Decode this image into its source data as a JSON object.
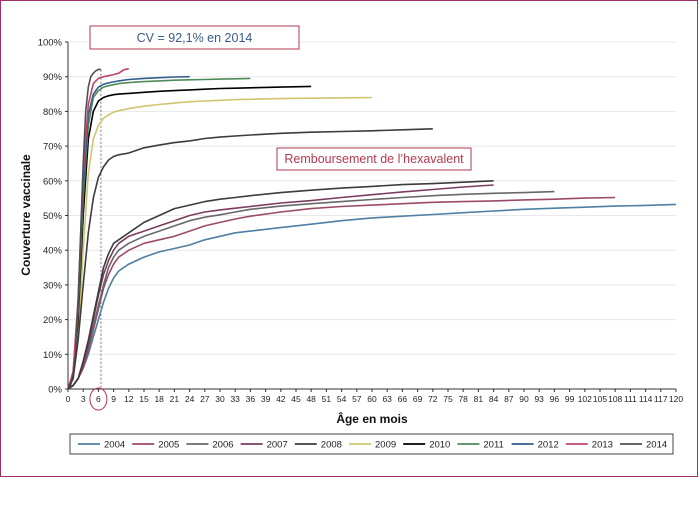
{
  "chart_data": {
    "type": "line",
    "ylabel": "Couverture vaccinale",
    "xlabel": "Âge en mois",
    "xlim": [
      0,
      120
    ],
    "ylim": [
      0,
      100
    ],
    "x_ticks": [
      0,
      3,
      6,
      9,
      12,
      15,
      18,
      21,
      24,
      27,
      30,
      33,
      36,
      39,
      42,
      45,
      48,
      51,
      54,
      57,
      60,
      63,
      66,
      69,
      72,
      75,
      78,
      81,
      84,
      87,
      90,
      93,
      96,
      99,
      102,
      105,
      108,
      111,
      114,
      117,
      120
    ],
    "y_ticks": [
      "0%",
      "10%",
      "20%",
      "30%",
      "40%",
      "50%",
      "60%",
      "70%",
      "80%",
      "90%",
      "100%"
    ],
    "y_tick_values": [
      0,
      10,
      20,
      30,
      40,
      50,
      60,
      70,
      80,
      90,
      100
    ],
    "highlighted_tick": "6",
    "reference_x": 6.5,
    "annotations": [
      {
        "text": "CV = 92,1% en 2014",
        "color": "#3a5a8a"
      },
      {
        "text": "Remboursement de l’hexavalent",
        "color": "#b03a50"
      }
    ],
    "legend_position": "bottom",
    "series": [
      {
        "name": "2004",
        "color": "#4f7fa3",
        "x": [
          0,
          1,
          2,
          3,
          4,
          5,
          6,
          7,
          8,
          9,
          10,
          12,
          15,
          18,
          21,
          24,
          27,
          30,
          33,
          36,
          42,
          48,
          54,
          60,
          66,
          72,
          78,
          84,
          90,
          96,
          102,
          108,
          114,
          120
        ],
        "y": [
          0,
          1,
          3,
          6,
          10,
          15,
          20,
          25,
          29,
          32,
          34,
          36,
          38,
          39.5,
          40.5,
          41.5,
          43,
          44,
          45,
          45.5,
          46.5,
          47.5,
          48.5,
          49.3,
          49.8,
          50.3,
          50.8,
          51.3,
          51.8,
          52.1,
          52.4,
          52.7,
          52.9,
          53.2
        ]
      },
      {
        "name": "2005",
        "color": "#9b4a6e",
        "x": [
          0,
          1,
          2,
          3,
          4,
          5,
          6,
          7,
          8,
          9,
          10,
          12,
          15,
          18,
          21,
          24,
          27,
          30,
          33,
          36,
          42,
          48,
          54,
          60,
          66,
          72,
          78,
          84,
          90,
          96,
          102,
          108
        ],
        "y": [
          0,
          1,
          3,
          6,
          11,
          17,
          23,
          29,
          33,
          36,
          38,
          40,
          42,
          43,
          44,
          45.5,
          47,
          48,
          49,
          49.8,
          51,
          52,
          52.6,
          53,
          53.4,
          53.8,
          54,
          54.2,
          54.5,
          54.7,
          55,
          55.2
        ]
      },
      {
        "name": "2006",
        "color": "#686868",
        "x": [
          0,
          1,
          2,
          3,
          4,
          5,
          6,
          7,
          8,
          9,
          10,
          12,
          15,
          18,
          21,
          24,
          27,
          30,
          33,
          36,
          42,
          48,
          54,
          60,
          66,
          72,
          78,
          84,
          90,
          96
        ],
        "y": [
          0,
          1,
          3,
          7,
          12,
          18,
          24,
          30,
          35,
          38,
          40,
          42,
          44,
          45.5,
          47,
          48.5,
          49.5,
          50.2,
          51,
          51.8,
          52.7,
          53.4,
          54,
          54.6,
          55.2,
          55.7,
          56.1,
          56.4,
          56.6,
          56.9
        ]
      },
      {
        "name": "2007",
        "color": "#7b3c5e",
        "x": [
          0,
          1,
          2,
          3,
          4,
          5,
          6,
          7,
          8,
          9,
          10,
          12,
          15,
          18,
          21,
          24,
          27,
          30,
          33,
          36,
          42,
          48,
          54,
          60,
          66,
          72,
          78,
          84
        ],
        "y": [
          0,
          1,
          3,
          7,
          13,
          20,
          27,
          33,
          37,
          40,
          42,
          44,
          45.5,
          47,
          48.5,
          50,
          51,
          51.6,
          52.1,
          52.6,
          53.6,
          54.3,
          55.2,
          56,
          56.8,
          57.5,
          58.2,
          58.8
        ]
      },
      {
        "name": "2008",
        "color": "#3c3c3c",
        "x": [
          0,
          1,
          2,
          3,
          4,
          5,
          6,
          7,
          8,
          9,
          10,
          12,
          15,
          18,
          21,
          24,
          27,
          30,
          33,
          36,
          42,
          48,
          54,
          60,
          66,
          72,
          78,
          84
        ],
        "y": [
          0,
          1,
          3,
          8,
          14,
          21,
          28,
          35,
          39,
          42,
          43,
          45,
          48,
          50,
          52,
          53,
          54,
          54.7,
          55.2,
          55.7,
          56.6,
          57.3,
          57.9,
          58.4,
          58.9,
          59.2,
          59.6,
          60
        ]
      },
      {
        "name": "2009",
        "color": "#d2c46e",
        "x": [
          0,
          1,
          2,
          3,
          4,
          5,
          6,
          7,
          8,
          9,
          10,
          12,
          15,
          18,
          21,
          24,
          27,
          30,
          33,
          36,
          42,
          48,
          54,
          60
        ],
        "y": [
          0,
          3,
          15,
          40,
          62,
          72,
          76,
          78,
          79,
          79.8,
          80.2,
          80.8,
          81.5,
          82,
          82.4,
          82.8,
          83,
          83.2,
          83.4,
          83.5,
          83.7,
          83.8,
          83.9,
          84
        ]
      },
      {
        "name": "2010",
        "color": "#000000",
        "x": [
          0,
          1,
          2,
          3,
          4,
          5,
          6,
          7,
          8,
          9,
          10,
          12,
          15,
          18,
          21,
          24,
          27,
          30,
          33,
          36,
          42,
          48
        ],
        "y": [
          0,
          4,
          20,
          50,
          72,
          80,
          83,
          84,
          84.5,
          84.8,
          85,
          85.2,
          85.5,
          85.8,
          86,
          86.2,
          86.4,
          86.6,
          86.7,
          86.8,
          87,
          87.2
        ]
      },
      {
        "name": "2011",
        "color": "#4e8a5a",
        "x": [
          0,
          1,
          2,
          3,
          4,
          5,
          6,
          7,
          8,
          9,
          10,
          12,
          15,
          18,
          21,
          24,
          27,
          30,
          33,
          36
        ],
        "y": [
          0,
          4,
          22,
          55,
          76,
          84,
          86,
          87,
          87.4,
          87.7,
          88,
          88.3,
          88.6,
          88.8,
          89,
          89.1,
          89.2,
          89.3,
          89.4,
          89.5
        ]
      },
      {
        "name": "2012",
        "color": "#2f5f8f",
        "x": [
          0,
          1,
          2,
          3,
          4,
          5,
          6,
          7,
          8,
          9,
          10,
          12,
          15,
          18,
          21,
          24
        ],
        "y": [
          0,
          4,
          24,
          58,
          79,
          85,
          87,
          87.8,
          88.2,
          88.5,
          88.8,
          89.2,
          89.5,
          89.7,
          89.9,
          90
        ]
      },
      {
        "name": "2013",
        "color": "#c0446a",
        "x": [
          0,
          1,
          2,
          3,
          4,
          5,
          6,
          7,
          8,
          9,
          10,
          11,
          12
        ],
        "y": [
          0,
          5,
          26,
          62,
          82,
          88,
          89.5,
          90,
          90.3,
          90.6,
          91,
          92,
          92.3
        ]
      },
      {
        "name": "2014",
        "color": "#505050",
        "x": [
          0,
          0.5,
          1,
          1.5,
          2,
          2.5,
          3,
          3.5,
          4,
          4.5,
          5,
          5.5,
          6,
          6.5
        ],
        "y": [
          0,
          1,
          4,
          10,
          25,
          45,
          65,
          80,
          87,
          90,
          91,
          91.7,
          92.1,
          92.1
        ]
      },
      {
        "name": "",
        "color": "#3c3c3c",
        "x": [
          0,
          1,
          2,
          3,
          4,
          5,
          6,
          7,
          8,
          9,
          10,
          12,
          15,
          18,
          21,
          24,
          27,
          30,
          33,
          36,
          42,
          48,
          54,
          60,
          66,
          72
        ],
        "y": [
          0,
          3,
          14,
          30,
          45,
          55,
          61,
          64,
          66,
          67,
          67.5,
          68,
          69.5,
          70.3,
          71,
          71.5,
          72.2,
          72.6,
          72.9,
          73.2,
          73.7,
          74,
          74.2,
          74.4,
          74.7,
          75
        ]
      }
    ]
  }
}
